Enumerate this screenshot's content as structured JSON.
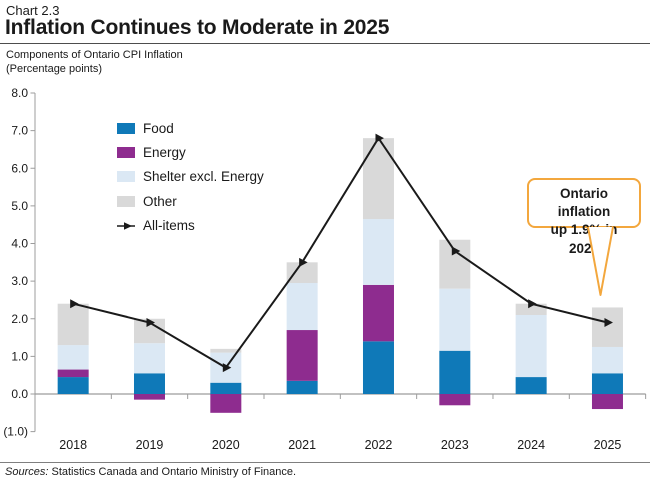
{
  "header": {
    "chart_number": "Chart 2.3",
    "title": "Inflation Continues to Moderate in 2025",
    "subtitle_line1": "Components of Ontario CPI Inflation",
    "subtitle_line2": "(Percentage points)"
  },
  "chart_data": {
    "type": "bar",
    "subtype": "stacked bars with all-items line overlay",
    "title": "Inflation Continues to Moderate in 2025",
    "subtitle": "Components of Ontario CPI Inflation (Percentage points)",
    "categories": [
      "2018",
      "2019",
      "2020",
      "2021",
      "2022",
      "2023",
      "2024",
      "2025"
    ],
    "series": [
      {
        "name": "Food",
        "type": "bar",
        "color": "#0f79b8",
        "values": [
          0.45,
          0.55,
          0.3,
          0.35,
          1.4,
          1.15,
          0.45,
          0.55
        ]
      },
      {
        "name": "Energy",
        "type": "bar",
        "color": "#8e2c8f",
        "values": [
          0.2,
          -0.15,
          -0.5,
          1.35,
          1.5,
          -0.3,
          0.0,
          -0.4
        ]
      },
      {
        "name": "Shelter excl. Energy",
        "type": "bar",
        "color": "#dbe8f4",
        "values": [
          0.65,
          0.8,
          0.8,
          1.25,
          1.75,
          1.65,
          1.65,
          0.7
        ]
      },
      {
        "name": "Other",
        "type": "bar",
        "color": "#d9d9d9",
        "values": [
          1.1,
          0.65,
          0.1,
          0.55,
          2.15,
          1.3,
          0.3,
          1.05
        ]
      },
      {
        "name": "All-items",
        "type": "line",
        "color": "#1a1a1a",
        "values": [
          2.4,
          1.9,
          0.7,
          3.5,
          6.8,
          3.8,
          2.4,
          1.9
        ]
      }
    ],
    "xlabel": "",
    "ylabel": "Percentage points",
    "ylim": [
      -1.0,
      8.0
    ],
    "y_ticks": [
      "8.0",
      "7.0",
      "6.0",
      "5.0",
      "4.0",
      "3.0",
      "2.0",
      "1.0",
      "0.0",
      "(1.0)"
    ],
    "y_tick_values": [
      8,
      7,
      6,
      5,
      4,
      3,
      2,
      1,
      0,
      -1
    ],
    "grid": "zero line only",
    "legend_position": "upper-left inside plot area",
    "axis_color": "#9c9c9c"
  },
  "callout": {
    "text_line1": "Ontario inflation",
    "text_line2": "up 1.9% in 2025",
    "border_color": "#f3a73d"
  },
  "footer": {
    "source_prefix": "Sources:",
    "source_text": " Statistics Canada and Ontario Ministry of Finance."
  }
}
